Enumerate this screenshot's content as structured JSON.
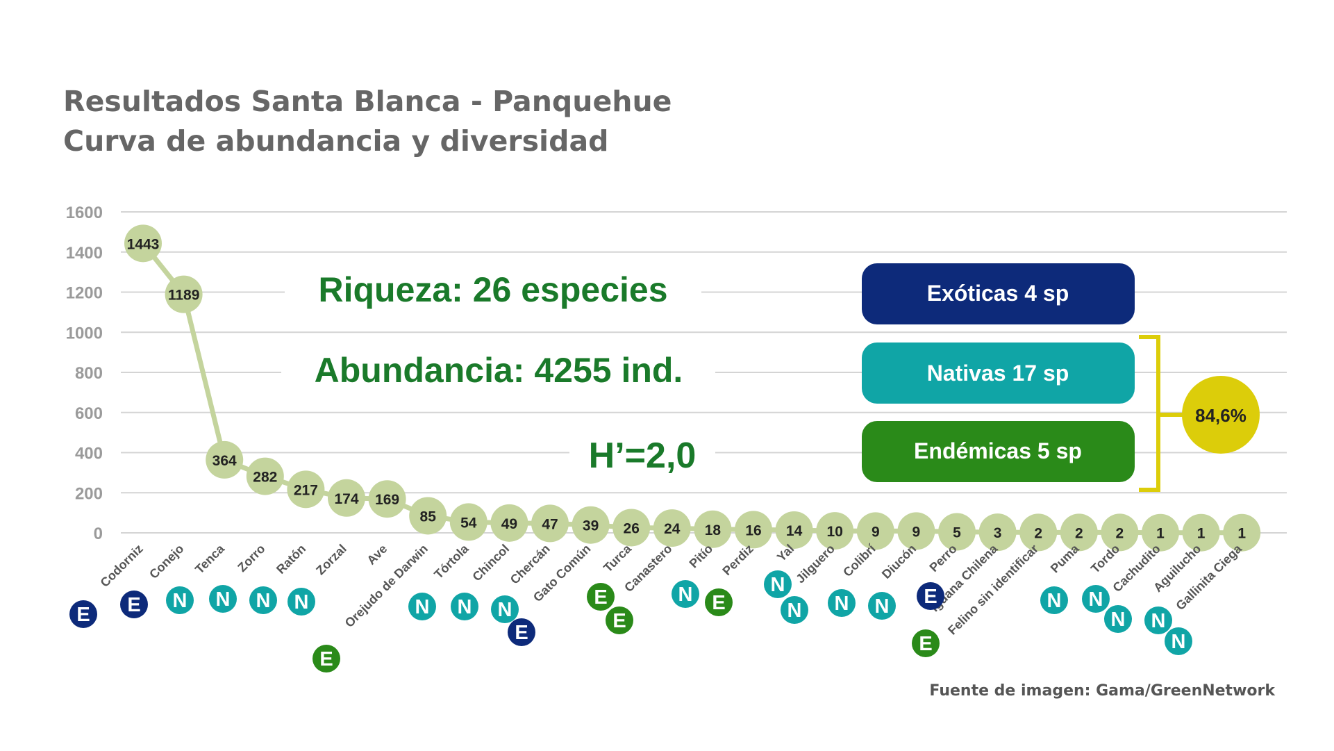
{
  "title_line1": "Resultados Santa Blanca - Panquehue",
  "title_line2": "Curva de abundancia y diversidad",
  "source": "Fuente de imagen: Gama/GreenNetwork",
  "stats": {
    "riqueza": "Riqueza: 26 especies",
    "abundancia": "Abundancia: 4255 ind.",
    "shannon": "H’=2,0"
  },
  "legend": {
    "exoticas": "Exóticas 4 sp",
    "nativas": "Nativas 17 sp",
    "endemicas": "Endémicas 5 sp",
    "percent": "84,6%"
  },
  "colors": {
    "exotic": "#0d2a7a",
    "native": "#10a5a6",
    "endemic": "#2a8a19",
    "curve": "#c4d49d",
    "stats_text": "#1a7a2a",
    "percent": "#dccd0a",
    "grid": "#d4d4d4",
    "axis_text": "#9a9a9a"
  },
  "chart_data": {
    "type": "line",
    "ylim": [
      0,
      1600
    ],
    "yticks": [
      0,
      200,
      400,
      600,
      800,
      1000,
      1200,
      1400,
      1600
    ],
    "grid": true,
    "categories": [
      "Codorniz",
      "Conejo",
      "Tenca",
      "Zorro",
      "Ratón",
      "Zorzal",
      "Ave",
      "Orejudo de Darwin",
      "Tórtola",
      "Chincol",
      "Chercán",
      "Gato Común",
      "Turca",
      "Canastero",
      "Pitío",
      "Perdiz",
      "Yal",
      "Jilguero",
      "Colibrí",
      "Diucón",
      "Perro",
      "Iguana Chilena",
      "Felino sin identificar",
      "Puma",
      "Tordo",
      "Cachudito",
      "Aguilucho",
      "Gallinita Ciega"
    ],
    "values": [
      1443,
      1189,
      364,
      282,
      217,
      174,
      169,
      85,
      54,
      49,
      47,
      39,
      26,
      24,
      18,
      16,
      14,
      10,
      9,
      9,
      5,
      3,
      2,
      2,
      2,
      1,
      1,
      1
    ],
    "value_labels": [
      "1443",
      "1189",
      "364",
      "282",
      "217",
      "174",
      "169",
      "85",
      "54",
      "49",
      "47",
      "39",
      "26",
      "24",
      "18",
      "16",
      "14",
      "10",
      "9",
      "9",
      "5",
      "3",
      "2",
      "2",
      "2",
      "1",
      "1",
      "1"
    ],
    "status_markers": [
      {
        "letter": "E",
        "type": "exotic"
      },
      {
        "letter": "E",
        "type": "exotic"
      },
      {
        "letter": "N",
        "type": "native"
      },
      {
        "letter": "N",
        "type": "native"
      },
      {
        "letter": "N",
        "type": "native"
      },
      {
        "letter": "N",
        "type": "native"
      },
      {
        "letter": "E",
        "type": "endemic"
      },
      {
        "letter": "N",
        "type": "native"
      },
      {
        "letter": "N",
        "type": "native"
      },
      {
        "letter": "N",
        "type": "native"
      },
      {
        "letter": "E",
        "type": "exotic"
      },
      {
        "letter": "E",
        "type": "endemic"
      },
      {
        "letter": "E",
        "type": "endemic"
      },
      {
        "letter": "N",
        "type": "native"
      },
      {
        "letter": "E",
        "type": "endemic"
      },
      {
        "letter": "N",
        "type": "native"
      },
      {
        "letter": "N",
        "type": "native"
      },
      {
        "letter": "N",
        "type": "native"
      },
      {
        "letter": "N",
        "type": "native"
      },
      {
        "letter": "E",
        "type": "exotic"
      },
      {
        "letter": "E",
        "type": "endemic"
      },
      {
        "letter": "N",
        "type": "native"
      },
      {
        "letter": "N",
        "type": "native"
      },
      {
        "letter": "N",
        "type": "native"
      },
      {
        "letter": "N",
        "type": "native"
      },
      {
        "letter": "N",
        "type": "native"
      }
    ]
  }
}
